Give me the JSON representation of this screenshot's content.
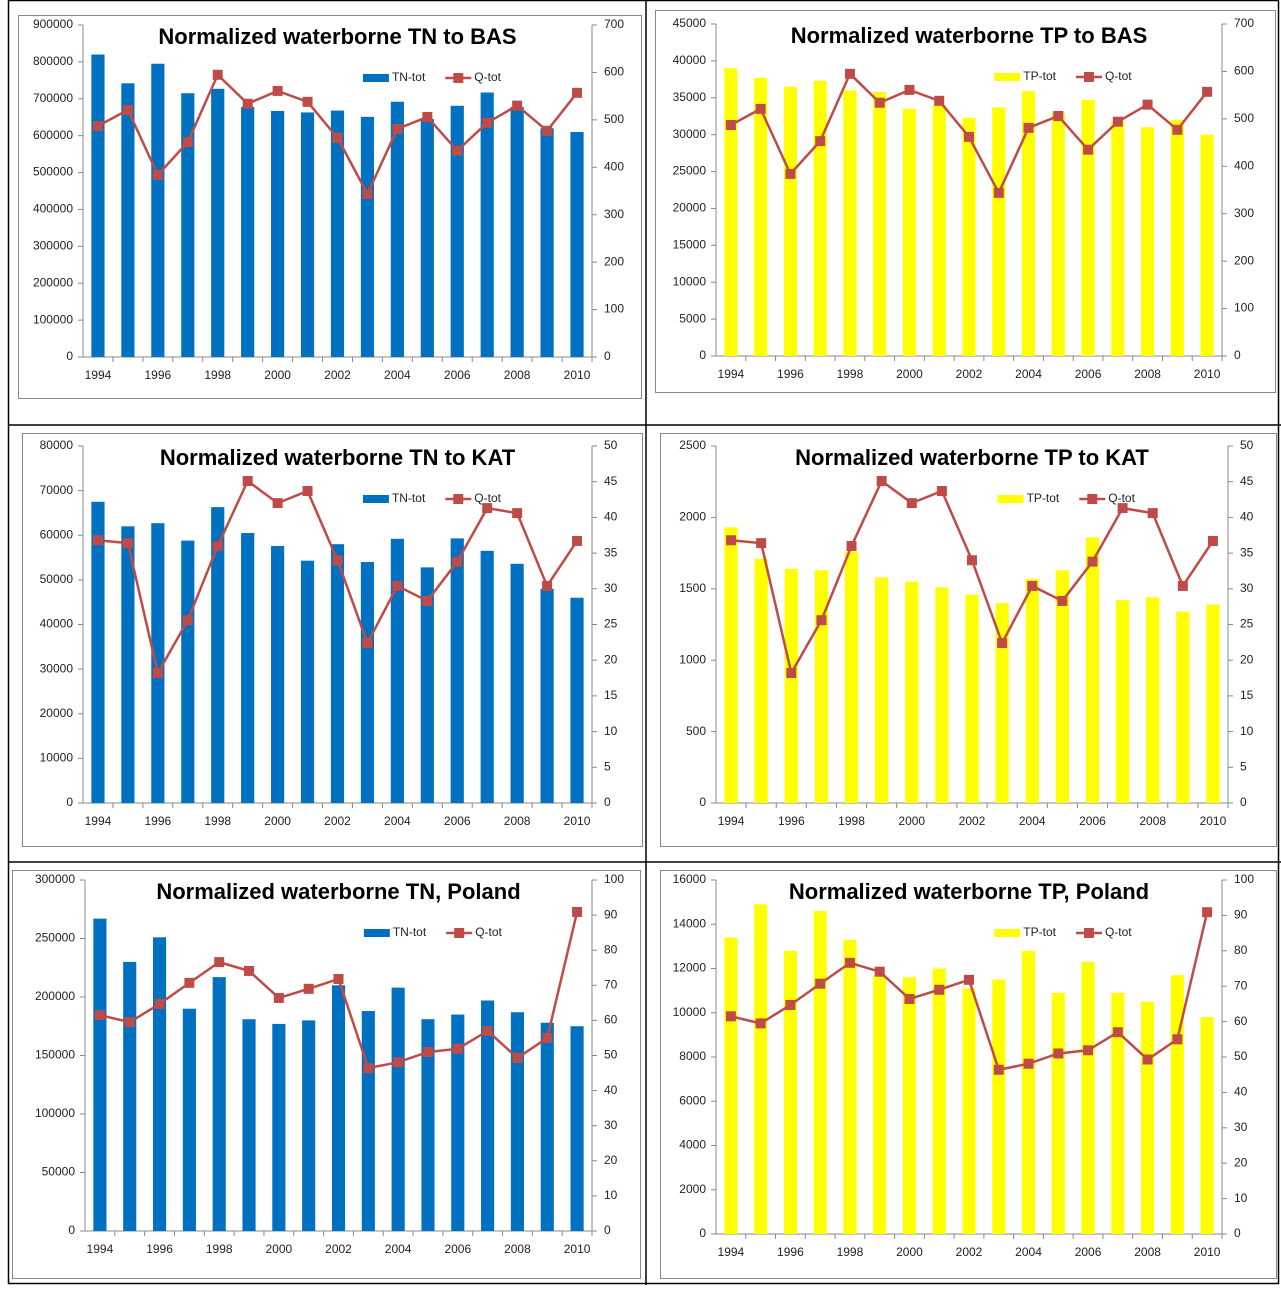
{
  "chart_data": [
    {
      "type": "combo",
      "title": "Normalized waterborne TN to BAS",
      "categories": [
        "1994",
        null,
        "1996",
        null,
        "1998",
        null,
        "2000",
        null,
        "2002",
        null,
        "2004",
        null,
        "2006",
        null,
        "2008",
        null,
        "2010"
      ],
      "ylim": [
        0,
        900000
      ],
      "yticks": [
        0,
        100000,
        200000,
        300000,
        400000,
        500000,
        600000,
        700000,
        800000,
        900000
      ],
      "y2lim": [
        0,
        700
      ],
      "y2ticks": [
        0,
        100,
        200,
        300,
        400,
        500,
        600,
        700
      ],
      "legend": "top-right",
      "series": [
        {
          "name": "TN-tot",
          "type": "bar",
          "color": "#0070c0",
          "values": [
            820000,
            742000,
            795000,
            715000,
            727000,
            678000,
            667000,
            663000,
            668000,
            651000,
            692000,
            645000,
            681000,
            717000,
            678000,
            620000,
            610000
          ]
        },
        {
          "name": "Q-tot",
          "type": "line",
          "axis": "y2",
          "color": "#be4b48",
          "values": [
            487,
            521,
            384,
            453,
            595,
            534,
            561,
            538,
            462,
            344,
            481,
            506,
            435,
            494,
            530,
            477,
            557
          ]
        }
      ]
    },
    {
      "type": "combo",
      "title": "Normalized waterborne TP to BAS",
      "categories": [
        "1994",
        null,
        "1996",
        null,
        "1998",
        null,
        "2000",
        null,
        "2002",
        null,
        "2004",
        null,
        "2006",
        null,
        "2008",
        null,
        "2010"
      ],
      "ylim": [
        0,
        45000
      ],
      "yticks": [
        0,
        5000,
        10000,
        15000,
        20000,
        25000,
        30000,
        35000,
        40000,
        45000
      ],
      "y2lim": [
        0,
        700
      ],
      "y2ticks": [
        0,
        100,
        200,
        300,
        400,
        500,
        600,
        700
      ],
      "legend": "top-right",
      "series": [
        {
          "name": "TP-tot",
          "type": "bar",
          "color": "#ffff00",
          "values": [
            39000,
            37700,
            36500,
            37300,
            36000,
            35800,
            33500,
            34000,
            32300,
            33700,
            35900,
            33000,
            34700,
            31800,
            31000,
            32000,
            30000
          ]
        },
        {
          "name": "Q-tot",
          "type": "line",
          "axis": "y2",
          "color": "#be4b48",
          "values": [
            487,
            521,
            384,
            453,
            595,
            534,
            561,
            538,
            462,
            344,
            481,
            506,
            435,
            494,
            530,
            477,
            557
          ]
        }
      ]
    },
    {
      "type": "combo",
      "title": "Normalized waterborne TN to KAT",
      "categories": [
        "1994",
        null,
        "1996",
        null,
        "1998",
        null,
        "2000",
        null,
        "2002",
        null,
        "2004",
        null,
        "2006",
        null,
        "2008",
        null,
        "2010"
      ],
      "ylim": [
        0,
        80000
      ],
      "yticks": [
        0,
        10000,
        20000,
        30000,
        40000,
        50000,
        60000,
        70000,
        80000
      ],
      "y2lim": [
        0,
        50
      ],
      "y2ticks": [
        0,
        5,
        10,
        15,
        20,
        25,
        30,
        35,
        40,
        45,
        50
      ],
      "legend": "top-right",
      "series": [
        {
          "name": "TN-tot",
          "type": "bar",
          "color": "#0070c0",
          "values": [
            67500,
            62000,
            62700,
            58800,
            66300,
            60500,
            57600,
            54300,
            58000,
            54000,
            59200,
            52800,
            59300,
            56500,
            53600,
            48000,
            46000
          ]
        },
        {
          "name": "Q-tot",
          "type": "line",
          "axis": "y2",
          "color": "#be4b48",
          "values": [
            36.8,
            36.4,
            18.2,
            25.6,
            36.0,
            45.1,
            42.0,
            43.7,
            34.0,
            22.4,
            30.4,
            28.3,
            33.8,
            41.3,
            40.6,
            30.4,
            36.7
          ]
        }
      ]
    },
    {
      "type": "combo",
      "title": "Normalized waterborne TP to KAT",
      "categories": [
        "1994",
        null,
        "1996",
        null,
        "1998",
        null,
        "2000",
        null,
        "2002",
        null,
        "2004",
        null,
        "2006",
        null,
        "2008",
        null,
        "2010"
      ],
      "ylim": [
        0,
        2500
      ],
      "yticks": [
        0,
        500,
        1000,
        1500,
        2000,
        2500
      ],
      "y2lim": [
        0,
        50
      ],
      "y2ticks": [
        0,
        5,
        10,
        15,
        20,
        25,
        30,
        35,
        40,
        45,
        50
      ],
      "legend": "top-right",
      "series": [
        {
          "name": "TP-tot",
          "type": "bar",
          "color": "#ffff00",
          "values": [
            1930,
            1710,
            1640,
            1630,
            1760,
            1580,
            1550,
            1510,
            1460,
            1400,
            1570,
            1630,
            1860,
            1420,
            1440,
            1340,
            1390
          ]
        },
        {
          "name": "Q-tot",
          "type": "line",
          "axis": "y2",
          "color": "#be4b48",
          "values": [
            36.8,
            36.4,
            18.2,
            25.6,
            36.0,
            45.1,
            42.0,
            43.7,
            34.0,
            22.4,
            30.4,
            28.3,
            33.8,
            41.3,
            40.6,
            30.4,
            36.7
          ]
        }
      ]
    },
    {
      "type": "combo",
      "title": "Normalized waterborne TN, Poland",
      "categories": [
        "1994",
        null,
        "1996",
        null,
        "1998",
        null,
        "2000",
        null,
        "2002",
        null,
        "2004",
        null,
        "2006",
        null,
        "2008",
        null,
        "2010"
      ],
      "ylim": [
        0,
        300000
      ],
      "yticks": [
        0,
        50000,
        100000,
        150000,
        200000,
        250000,
        300000
      ],
      "y2lim": [
        0,
        100
      ],
      "y2ticks": [
        0,
        10,
        20,
        30,
        40,
        50,
        60,
        70,
        80,
        90,
        100
      ],
      "legend": "top-right",
      "series": [
        {
          "name": "TN-tot",
          "type": "bar",
          "color": "#0070c0",
          "values": [
            267000,
            230000,
            251000,
            190000,
            217000,
            181000,
            177000,
            180000,
            210000,
            188000,
            208000,
            181000,
            185000,
            197000,
            187000,
            178000,
            175000
          ]
        },
        {
          "name": "Q-tot",
          "type": "line",
          "axis": "y2",
          "color": "#be4b48",
          "values": [
            61.5,
            59.5,
            64.7,
            70.7,
            76.6,
            74.1,
            66.4,
            69.0,
            71.8,
            46.4,
            48.1,
            51.0,
            51.9,
            57.0,
            49.3,
            55.0,
            90.9
          ]
        }
      ]
    },
    {
      "type": "combo",
      "title": "Normalized waterborne TP, Poland",
      "categories": [
        "1994",
        null,
        "1996",
        null,
        "1998",
        null,
        "2000",
        null,
        "2002",
        null,
        "2004",
        null,
        "2006",
        null,
        "2008",
        null,
        "2010"
      ],
      "ylim": [
        0,
        16000
      ],
      "yticks": [
        0,
        2000,
        4000,
        6000,
        8000,
        10000,
        12000,
        14000,
        16000
      ],
      "y2lim": [
        0,
        100
      ],
      "y2ticks": [
        0,
        10,
        20,
        30,
        40,
        50,
        60,
        70,
        80,
        90,
        100
      ],
      "legend": "top-right",
      "series": [
        {
          "name": "TP-tot",
          "type": "bar",
          "color": "#ffff00",
          "values": [
            13400,
            14900,
            12800,
            14600,
            13300,
            11700,
            11600,
            12000,
            11100,
            11500,
            12800,
            10900,
            12300,
            10900,
            10500,
            11700,
            9800
          ]
        },
        {
          "name": "Q-tot",
          "type": "line",
          "axis": "y2",
          "color": "#be4b48",
          "values": [
            61.5,
            59.5,
            64.7,
            70.7,
            76.6,
            74.1,
            66.4,
            69.0,
            71.8,
            46.4,
            48.1,
            51.0,
            51.9,
            57.0,
            49.3,
            55.0,
            90.9
          ]
        }
      ]
    }
  ]
}
